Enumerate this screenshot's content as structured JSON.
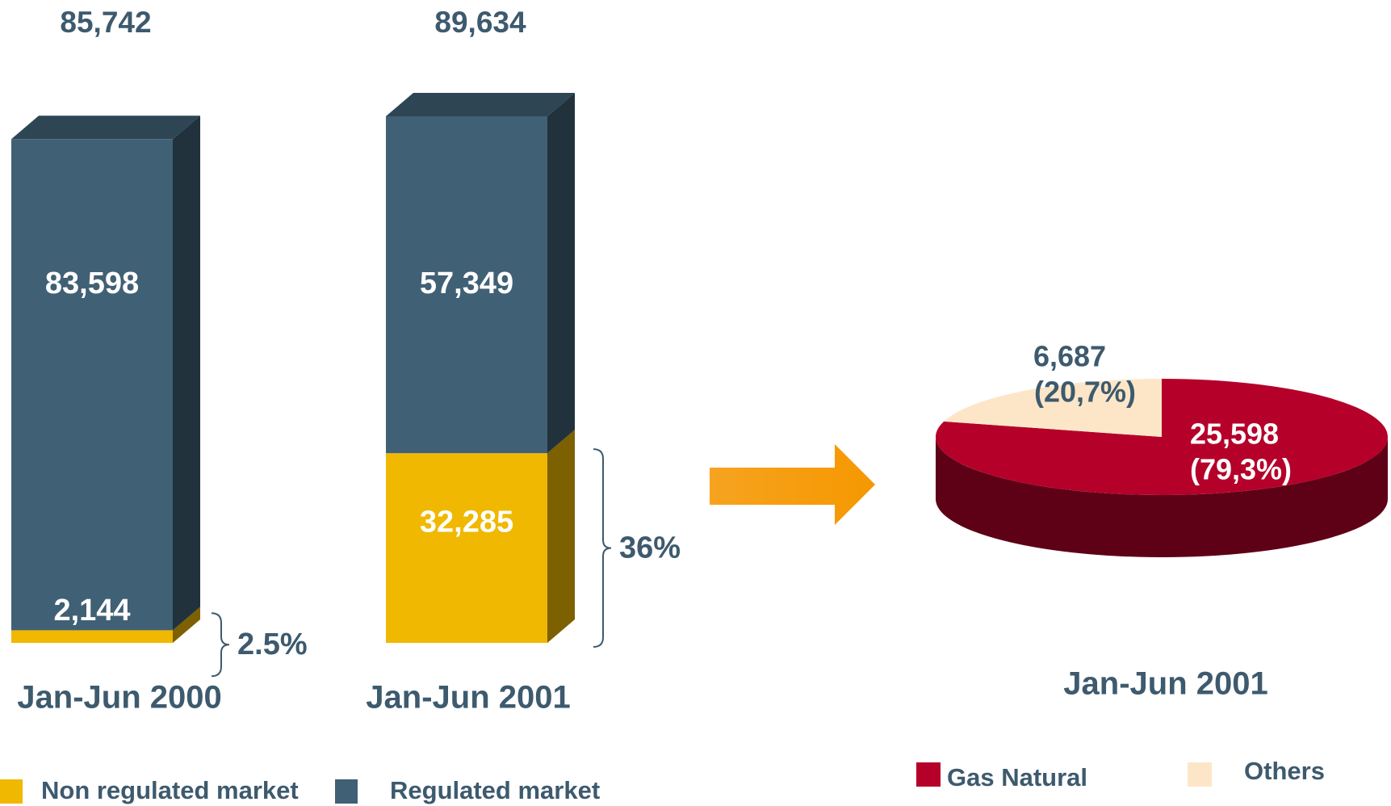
{
  "chart_data": [
    {
      "type": "stacked-bar-3d",
      "categories": [
        "Jan-Jun 2000",
        "Jan-Jun 2001"
      ],
      "series": [
        {
          "name": "Non regulated market",
          "color": "#f0b800",
          "values": [
            2144,
            32285
          ],
          "value_labels": [
            "2,144",
            "32,285"
          ]
        },
        {
          "name": "Regulated market",
          "color": "#406075",
          "values": [
            83598,
            57349
          ],
          "value_labels": [
            "83,598",
            "57,349"
          ]
        }
      ],
      "totals": [
        85742,
        89634
      ],
      "total_labels": [
        "85,742",
        "89,634"
      ],
      "share_labels": [
        "2.5%",
        "36%"
      ]
    },
    {
      "type": "pie-3d",
      "label": "Jan-Jun 2001",
      "labels": [
        "Gas Natural",
        "Others"
      ],
      "colors": [
        "#b5002a",
        "#fde6c8"
      ],
      "values": [
        25598,
        6687
      ],
      "value_labels": [
        "25,598",
        "6,687"
      ],
      "percent_labels": [
        "(79,3%)",
        "(20,7%)"
      ]
    }
  ]
}
